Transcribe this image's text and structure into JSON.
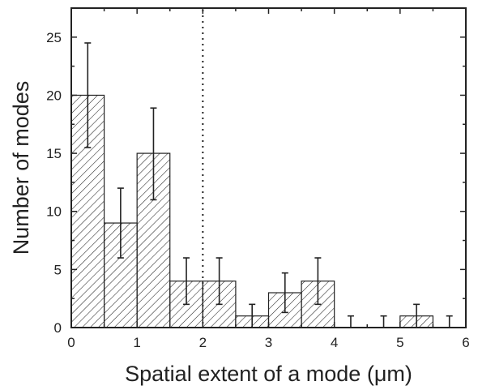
{
  "chart_data": {
    "type": "bar",
    "title": "",
    "xlabel": "Spatial extent of a mode (μm)",
    "ylabel": "Number of modes",
    "xlim": [
      0,
      6
    ],
    "ylim": [
      0,
      27.5
    ],
    "x_ticks": [
      "0",
      "1",
      "2",
      "3",
      "4",
      "5",
      "6"
    ],
    "y_ticks": [
      "0",
      "5",
      "10",
      "15",
      "20",
      "25"
    ],
    "bin_width": 0.5,
    "bins": [
      {
        "x_start": 0.0,
        "x_end": 0.5,
        "value": 20,
        "err_low": 15.5,
        "err_high": 24.5
      },
      {
        "x_start": 0.5,
        "x_end": 1.0,
        "value": 9,
        "err_low": 6,
        "err_high": 12
      },
      {
        "x_start": 1.0,
        "x_end": 1.5,
        "value": 15,
        "err_low": 11,
        "err_high": 18.9
      },
      {
        "x_start": 1.5,
        "x_end": 2.0,
        "value": 4,
        "err_low": 2,
        "err_high": 6
      },
      {
        "x_start": 2.0,
        "x_end": 2.5,
        "value": 4,
        "err_low": 2,
        "err_high": 6
      },
      {
        "x_start": 2.5,
        "x_end": 3.0,
        "value": 1,
        "err_low": 0,
        "err_high": 2
      },
      {
        "x_start": 3.0,
        "x_end": 3.5,
        "value": 3,
        "err_low": 1.3,
        "err_high": 4.7
      },
      {
        "x_start": 3.5,
        "x_end": 4.0,
        "value": 4,
        "err_low": 2,
        "err_high": 6
      },
      {
        "x_start": 4.0,
        "x_end": 4.5,
        "value": 0,
        "err_low": 0,
        "err_high": 1
      },
      {
        "x_start": 4.5,
        "x_end": 5.0,
        "value": 0,
        "err_low": 0,
        "err_high": 1
      },
      {
        "x_start": 5.0,
        "x_end": 5.5,
        "value": 1,
        "err_low": 0,
        "err_high": 2
      },
      {
        "x_start": 5.5,
        "x_end": 6.0,
        "value": 0,
        "err_low": 0,
        "err_high": 1
      }
    ],
    "reference_line": {
      "x": 2,
      "style": "dotted"
    },
    "bar_fill": "diagonal-hatch",
    "colors": {
      "bars": "#222222",
      "axes": "#222222",
      "background": "#ffffff"
    },
    "grid": false,
    "legend": "none"
  }
}
